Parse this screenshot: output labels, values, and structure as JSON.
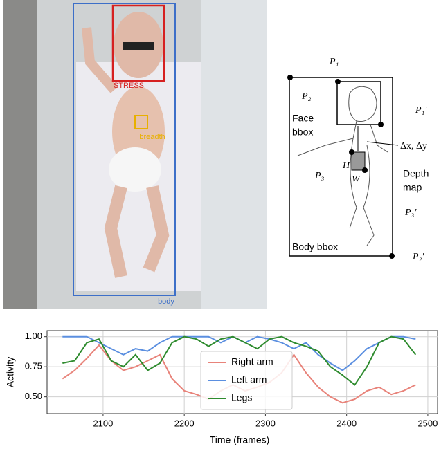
{
  "photo": {
    "labels": {
      "face": "STRESS",
      "breath": "breadth",
      "body": "body"
    }
  },
  "diagram": {
    "labels": {
      "p1": "P₁",
      "p2": "P₂",
      "p1p": "P₁′",
      "face": [
        "Face",
        "bbox"
      ],
      "delta": "Δx, Δy",
      "h": "H",
      "w": "W",
      "p3": "P₃",
      "depth": [
        "Depth",
        "map"
      ],
      "p3p": "P₃′",
      "body": "Body bbox",
      "p2p": "P₂′"
    }
  },
  "chart_data": {
    "type": "line",
    "x_label": "Time (frames)",
    "y_label": "Activity",
    "x": [
      2050,
      2065,
      2080,
      2095,
      2110,
      2125,
      2140,
      2155,
      2170,
      2185,
      2200,
      2215,
      2230,
      2245,
      2260,
      2275,
      2290,
      2305,
      2320,
      2335,
      2350,
      2365,
      2380,
      2395,
      2410,
      2425,
      2440,
      2455,
      2470,
      2485
    ],
    "series": [
      {
        "name": "Right arm",
        "color": "#e8837a",
        "values": [
          0.65,
          0.72,
          0.82,
          0.93,
          0.8,
          0.72,
          0.75,
          0.8,
          0.85,
          0.65,
          0.55,
          0.52,
          0.48,
          0.55,
          0.6,
          0.55,
          0.58,
          0.62,
          0.7,
          0.85,
          0.7,
          0.58,
          0.5,
          0.45,
          0.48,
          0.55,
          0.58,
          0.52,
          0.55,
          0.6
        ]
      },
      {
        "name": "Left arm",
        "color": "#5b8fe0",
        "values": [
          1.0,
          1.0,
          1.0,
          0.95,
          0.9,
          0.85,
          0.9,
          0.88,
          0.95,
          1.0,
          1.0,
          1.0,
          1.0,
          0.95,
          1.0,
          0.95,
          1.0,
          0.98,
          0.95,
          0.9,
          0.95,
          0.85,
          0.78,
          0.72,
          0.8,
          0.9,
          0.95,
          1.0,
          1.0,
          0.98
        ]
      },
      {
        "name": "Legs",
        "color": "#2e8b2e",
        "values": [
          0.78,
          0.8,
          0.95,
          0.98,
          0.8,
          0.75,
          0.85,
          0.72,
          0.78,
          0.95,
          1.0,
          0.98,
          0.92,
          0.98,
          1.0,
          0.95,
          0.9,
          0.98,
          1.0,
          0.95,
          0.92,
          0.88,
          0.75,
          0.68,
          0.6,
          0.75,
          0.95,
          1.0,
          0.98,
          0.85
        ]
      }
    ],
    "xlim": [
      2031,
      2512
    ],
    "xticks": [
      2100,
      2200,
      2300,
      2400,
      2500
    ],
    "ylim": [
      0.36,
      1.05
    ],
    "yticks": [
      {
        "value": 0.5,
        "label": "0.50"
      },
      {
        "value": 0.75,
        "label": "0.75"
      },
      {
        "value": 1.0,
        "label": "1.00"
      }
    ],
    "grid": true,
    "legend": "center"
  }
}
